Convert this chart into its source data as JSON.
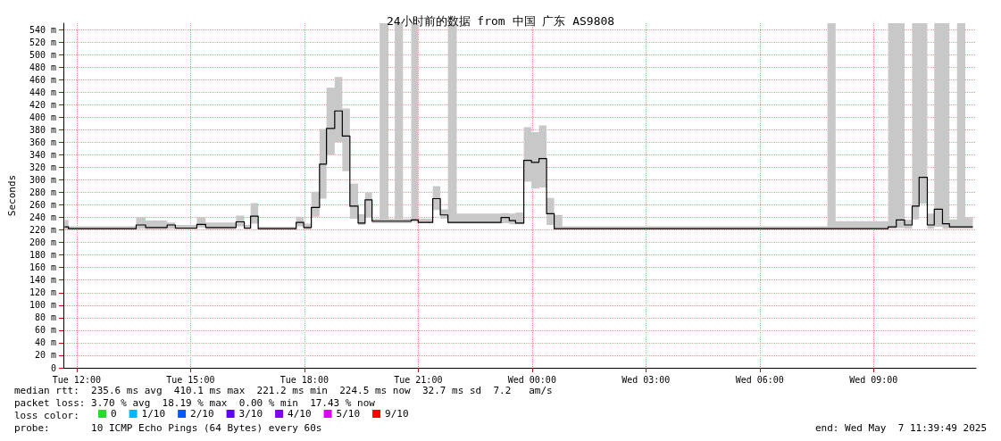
{
  "chart_data": {
    "type": "step",
    "title": "24小时前的数据 from 中国 广东 AS9808",
    "ylabel": "Seconds",
    "xlim": [
      "2025-05-06T11:39",
      "2025-05-07T11:42"
    ],
    "xticks": [
      {
        "value": "2025-05-06T12:00",
        "label": "Tue 12:00"
      },
      {
        "value": "2025-05-06T15:00",
        "label": "Tue 15:00"
      },
      {
        "value": "2025-05-06T18:00",
        "label": "Tue 18:00"
      },
      {
        "value": "2025-05-06T21:00",
        "label": "Tue 21:00"
      },
      {
        "value": "2025-05-07T00:00",
        "label": "Wed 00:00"
      },
      {
        "value": "2025-05-07T03:00",
        "label": "Wed 03:00"
      },
      {
        "value": "2025-05-07T06:00",
        "label": "Wed 06:00"
      },
      {
        "value": "2025-05-07T09:00",
        "label": "Wed 09:00"
      }
    ],
    "ylim": [
      0,
      550
    ],
    "yticks": [
      0,
      {
        "value": 20,
        "label": "20 m"
      },
      {
        "value": 40,
        "label": "40 m"
      },
      {
        "value": 60,
        "label": "60 m"
      },
      {
        "value": 80,
        "label": "80 m"
      },
      {
        "value": 100,
        "label": "100 m"
      },
      {
        "value": 120,
        "label": "120 m"
      },
      {
        "value": 140,
        "label": "140 m"
      },
      {
        "value": 160,
        "label": "160 m"
      },
      {
        "value": 180,
        "label": "180 m"
      },
      {
        "value": 200,
        "label": "200 m"
      },
      {
        "value": 220,
        "label": "220 m"
      },
      {
        "value": 240,
        "label": "240 m"
      },
      {
        "value": 260,
        "label": "260 m"
      },
      {
        "value": 280,
        "label": "280 m"
      },
      {
        "value": 300,
        "label": "300 m"
      },
      {
        "value": 320,
        "label": "320 m"
      },
      {
        "value": 340,
        "label": "340 m"
      },
      {
        "value": 360,
        "label": "360 m"
      },
      {
        "value": 380,
        "label": "380 m"
      },
      {
        "value": 400,
        "label": "400 m"
      },
      {
        "value": 420,
        "label": "420 m"
      },
      {
        "value": 440,
        "label": "440 m"
      },
      {
        "value": 460,
        "label": "460 m"
      },
      {
        "value": 480,
        "label": "480 m"
      },
      {
        "value": 500,
        "label": "500 m"
      },
      {
        "value": 520,
        "label": "520 m"
      },
      {
        "value": 540,
        "label": "540 m"
      }
    ],
    "grid": true,
    "legend": "bottom left",
    "marker": "none",
    "series": [
      {
        "color": "#000000",
        "x": [
          "2025-05-06T11:41",
          "2025-05-06T11:47",
          "2025-05-06T13:34",
          "2025-05-06T13:49",
          "2025-05-06T14:23",
          "2025-05-06T14:36",
          "2025-05-06T15:10",
          "2025-05-06T15:24",
          "2025-05-06T16:12",
          "2025-05-06T16:25",
          "2025-05-06T16:35",
          "2025-05-06T16:47",
          "2025-05-06T17:47",
          "2025-05-06T17:59",
          "2025-05-06T18:11",
          "2025-05-06T18:24",
          "2025-05-06T18:35",
          "2025-05-06T18:48",
          "2025-05-06T19:00",
          "2025-05-06T19:12",
          "2025-05-06T19:25",
          "2025-05-06T19:36",
          "2025-05-06T19:47",
          "2025-05-06T19:59",
          "2025-05-06T20:13",
          "2025-05-06T20:23",
          "2025-05-06T20:36",
          "2025-05-06T20:49",
          "2025-05-06T21:00",
          "2025-05-06T21:23",
          "2025-05-06T21:35",
          "2025-05-06T21:47",
          "2025-05-06T22:01",
          "2025-05-06T23:11",
          "2025-05-06T23:24",
          "2025-05-06T23:34",
          "2025-05-06T23:47",
          "2025-05-06T23:59",
          "2025-05-07T00:11",
          "2025-05-07T00:23",
          "2025-05-07T00:35",
          "2025-05-07T00:48",
          "2025-05-07T07:47",
          "2025-05-07T08:00",
          "2025-05-07T09:23",
          "2025-05-07T09:36",
          "2025-05-07T09:49",
          "2025-05-07T10:01",
          "2025-05-07T10:12",
          "2025-05-07T10:25",
          "2025-05-07T10:36",
          "2025-05-07T10:49",
          "2025-05-07T11:00",
          "2025-05-07T11:12",
          "2025-05-07T11:25",
          "2025-05-07T11:37"
        ],
        "values": [
          225,
          222,
          228,
          224,
          228,
          223,
          229,
          224,
          233,
          223,
          242,
          222,
          232,
          224,
          256,
          325,
          382,
          410,
          370,
          258,
          231,
          268,
          234,
          234,
          234,
          234,
          234,
          236,
          232,
          270,
          244,
          232,
          232,
          240,
          235,
          231,
          331,
          328,
          334,
          246,
          222,
          222,
          222,
          222,
          225,
          236,
          228,
          258,
          304,
          228,
          253,
          230,
          225,
          225,
          225,
          225
        ],
        "lower": [
          221,
          221,
          222,
          221,
          222,
          221,
          224,
          221,
          226,
          221,
          230,
          221,
          226,
          221,
          241,
          270,
          340,
          360,
          314,
          238,
          228,
          240,
          231,
          231,
          231,
          231,
          231,
          233,
          231,
          252,
          238,
          230,
          230,
          231,
          229,
          229,
          297,
          286,
          288,
          228,
          221,
          221,
          221,
          221,
          222,
          223,
          222,
          237,
          262,
          222,
          225,
          222,
          222,
          222,
          222,
          222
        ],
        "upper": [
          236,
          226,
          240,
          235,
          232,
          228,
          240,
          232,
          243,
          228,
          263,
          225,
          241,
          230,
          281,
          381,
          447,
          464,
          414,
          294,
          245,
          280,
          238,
          550,
          238,
          550,
          238,
          550,
          238,
          290,
          253,
          550,
          246,
          247,
          246,
          248,
          384,
          376,
          387,
          271,
          244,
          226,
          550,
          234,
          550,
          550,
          236,
          550,
          550,
          246,
          550,
          550,
          237,
          550,
          240,
          240
        ]
      },
      {
        "name": "0",
        "color": "#20e020"
      },
      {
        "name": "1/10",
        "color": "#00b8ff"
      },
      {
        "name": "2/10",
        "color": "#0059ff"
      },
      {
        "name": "3/10",
        "color": "#5e00ff"
      },
      {
        "name": "4/10",
        "color": "#7e00ff"
      },
      {
        "name": "5/10",
        "color": "#dd00ff"
      },
      {
        "name": "9/10",
        "color": "#ff0000"
      }
    ],
    "annotations": [
      "median rtt:  235.6 ms avg  410.1 ms max  221.2 ms min  224.5 ms now  32.7 ms sd  7.2   am/s",
      "packet loss: 3.70 % avg  18.19 % max  0.00 % min  17.43 % now",
      "loss color:",
      "probe:       10 ICMP Echo Pings (64 Bytes) every 60s",
      "end: Wed May  7 11:39:49 2025"
    ]
  }
}
